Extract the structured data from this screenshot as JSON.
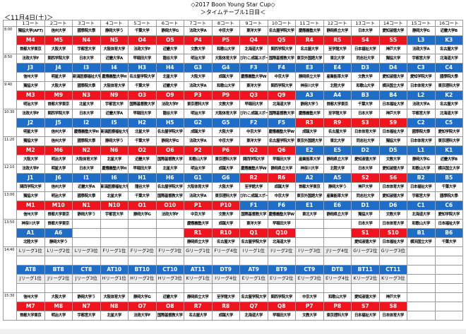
{
  "header": {
    "title": "◇2017 Boon Young Star Cup◇",
    "subtitle": "＞タイムテーブル1日目＜",
    "date": "＜11月4日(土)＞"
  },
  "colors": {
    "r": "#f0141e",
    "b": "#1e6ec8"
  },
  "courts": [
    "1コート",
    "2コート",
    "3コート",
    "4コート",
    "5コート",
    "6コート",
    "7コート",
    "8コート",
    "9コート",
    "10コート",
    "11コート",
    "12コート",
    "13コート",
    "14コート",
    "15コート",
    "16コート"
  ],
  "slots": [
    {
      "time": "8:00",
      "rows": [
        {
          "type": "team",
          "cells": [
            "獨協大学(AFT)",
            "信州大学",
            "國學院大學",
            "静岡大学う",
            "千葉大学",
            "静岡大学G",
            "法政大学A",
            "中京大学",
            "東洋大学",
            "名古屋学院大学",
            "慶應義塾大学",
            "静岡県立大学",
            "日本大学",
            "愛知淑徳大学",
            "静岡大学G",
            "近畿大学B"
          ]
        },
        {
          "type": "code",
          "cells": [
            "M4",
            "M5",
            "N4",
            "N5",
            "O4",
            "O5",
            "P4",
            "P5",
            "Q4",
            "Q5",
            "R4",
            "R5",
            "S4",
            "S5",
            "L3",
            "K3"
          ],
          "colors": [
            "r",
            "r",
            "r",
            "r",
            "r",
            "r",
            "r",
            "r",
            "r",
            "r",
            "r",
            "r",
            "r",
            "r",
            "b",
            "b"
          ]
        },
        {
          "type": "team",
          "cells": [
            "首都大学東京",
            "大阪大学",
            "宇都宮大学",
            "大阪体育大学",
            "法政大学F",
            "近畿大学",
            "文教大学",
            "和歌山大学",
            "北海道大学",
            "関西学院大学",
            "名古屋大学",
            "至学館大学",
            "日本福祉大学",
            "神戸大学",
            "法政大学A",
            "名古屋大学"
          ]
        }
      ]
    },
    {
      "time": "8:50",
      "rows": [
        {
          "type": "team",
          "cells": [
            "法政大学F",
            "関西学院大学",
            "日本大学",
            "近畿大学A",
            "早稲田大学",
            "龍谷大学",
            "明治大学",
            "大阪体育大学",
            "びわこ成蹊スポーツ大学",
            "国際基督教大学",
            "東京外国語大学",
            "東北大学",
            "同志社大学",
            "獨協大学",
            "宇都宮大学",
            "北海道大学"
          ]
        },
        {
          "type": "code",
          "cells": [
            "J3",
            "J4",
            "I3",
            "I4",
            "H3",
            "H4",
            "G3",
            "G4",
            "F3",
            "F4",
            "E3",
            "E4",
            "D3",
            "D4",
            "C3",
            "C4"
          ],
          "colors": [
            "b",
            "b",
            "b",
            "b",
            "b",
            "b",
            "b",
            "b",
            "b",
            "b",
            "b",
            "b",
            "b",
            "b",
            "b",
            "b"
          ]
        },
        {
          "type": "team",
          "cells": [
            "信州大学",
            "明星大学",
            "新潟医療福祉大学",
            "慶應義塾大学H",
            "名古屋学院大学",
            "北星大学",
            "大阪大学",
            "成蹊大学",
            "慶應義塾大学W",
            "中京大学",
            "静岡県立大学",
            "産業能率大学",
            "文教大学",
            "愛知淑徳大学",
            "愛知学院大学",
            "國學院大學"
          ]
        }
      ]
    },
    {
      "time": "9:40",
      "rows": [
        {
          "type": "team",
          "cells": [
            "獨協大学",
            "大阪大学",
            "國學院大學",
            "大阪体育大学",
            "千葉大学",
            "近畿大学",
            "法政大学A",
            "和歌山大学",
            "東洋大学",
            "関西学院大学",
            "神奈川大学",
            "北陸大学",
            "和歌山大学",
            "横浜国立大学",
            "日本体育大学",
            "東京理科大学"
          ]
        },
        {
          "type": "code",
          "cells": [
            "M3",
            "M9",
            "N3",
            "N9",
            "O3",
            "O9",
            "P3",
            "P9",
            "Q3",
            "Q9",
            "A3",
            "A4",
            "B3",
            "B4",
            "L2",
            "K2"
          ],
          "colors": [
            "r",
            "r",
            "r",
            "r",
            "r",
            "r",
            "r",
            "r",
            "r",
            "r",
            "b",
            "b",
            "b",
            "b",
            "b",
            "b"
          ]
        },
        {
          "type": "team",
          "cells": [
            "明治大学",
            "首都大学東京",
            "北星大学",
            "宇都宮大学",
            "国際基督教大学",
            "法政大学F",
            "東京理科大学",
            "文教大学",
            "早稲田大学",
            "北海道大学",
            "静岡大学う",
            "首都大学東京",
            "千葉大学",
            "日本福祉大学",
            "法政大学A",
            "名古屋大学"
          ]
        }
      ]
    },
    {
      "time": "10:30",
      "rows": [
        {
          "type": "team",
          "cells": [
            "法政大学F",
            "関西学院大学",
            "日本大学",
            "近畿大学A",
            "早稲田大学",
            "龍谷大学",
            "明治大学",
            "大阪体育大学",
            "びわこ成蹊スポーツ大学",
            "国際基督教大学",
            "慶應義塾大学",
            "至学館大学",
            "日本大学",
            "神戸大学",
            "宇都宮大学",
            "北海道大学"
          ]
        },
        {
          "type": "code",
          "cells": [
            "J2",
            "J5",
            "I2",
            "I5",
            "H2",
            "H5",
            "G2",
            "G5",
            "F2",
            "F5",
            "R3",
            "R9",
            "S3",
            "S9",
            "C2",
            "C5"
          ],
          "colors": [
            "b",
            "b",
            "b",
            "b",
            "b",
            "b",
            "b",
            "b",
            "b",
            "b",
            "r",
            "r",
            "r",
            "r",
            "b",
            "b"
          ]
        },
        {
          "type": "team",
          "cells": [
            "明星大学",
            "信州大学",
            "慶應義塾大学H",
            "新潟医療福祉大学",
            "北星大学",
            "名古屋学院大学",
            "成蹊大学",
            "大阪大学",
            "中京大学",
            "慶應義塾大学W",
            "成蹊大学",
            "名古屋大学",
            "日本体育大学",
            "日本福祉大学",
            "國學院大學",
            "愛知学院大学"
          ]
        }
      ]
    },
    {
      "time": "11:20",
      "rows": [
        {
          "type": "team",
          "cells": [
            "獨協大学",
            "信州大学",
            "國學院大學",
            "静岡大学う",
            "千葉大学",
            "静岡大学G",
            "法政大学A",
            "中京大学",
            "東洋大学",
            "名古屋学院大学",
            "東京外国語大学",
            "東北大学",
            "同志社大学",
            "獨協大学",
            "日本体育大学",
            "東京理科大学"
          ]
        },
        {
          "type": "code",
          "cells": [
            "M2",
            "M6",
            "N2",
            "N6",
            "O2",
            "O6",
            "P2",
            "P6",
            "Q2",
            "Q6",
            "E2",
            "E5",
            "D2",
            "D5",
            "L1",
            "K1"
          ],
          "colors": [
            "r",
            "r",
            "r",
            "r",
            "r",
            "r",
            "r",
            "r",
            "r",
            "r",
            "b",
            "b",
            "b",
            "b",
            "b",
            "b"
          ]
        },
        {
          "type": "team",
          "cells": [
            "大阪大学",
            "明治大学",
            "大阪体育大学",
            "北星大学",
            "近畿大学",
            "国際基督教大学",
            "和歌山大学",
            "東京理科大学",
            "関西学院大学",
            "早稲田大学",
            "産業能率大学",
            "静岡県立大学",
            "愛知淑徳大学",
            "文教大学",
            "静岡大学G",
            "近畿大学B"
          ]
        }
      ]
    },
    {
      "time": "12:10",
      "rows": [
        {
          "type": "team",
          "cells": [
            "法政大学F",
            "明星大学",
            "日本大学",
            "慶應義塾大学H",
            "早稲田大学",
            "北星大学",
            "明治大学",
            "成蹊大学",
            "慶應義塾大学W",
            "静岡県立大学",
            "神奈川大学",
            "北陸大学",
            "日本大学",
            "愛知淑徳大学",
            "和歌山大学",
            "横浜国立大学"
          ]
        },
        {
          "type": "code",
          "cells": [
            "J1",
            "J6",
            "I1",
            "I6",
            "H1",
            "H6",
            "G1",
            "G6",
            "R2",
            "R6",
            "A2",
            "A5",
            "S2",
            "S6",
            "B2",
            "B5"
          ],
          "colors": [
            "b",
            "b",
            "b",
            "b",
            "b",
            "b",
            "b",
            "b",
            "r",
            "r",
            "b",
            "b",
            "r",
            "r",
            "b",
            "b"
          ]
        },
        {
          "type": "team",
          "cells": [
            "関西学院大学",
            "信州大学",
            "近畿大学A",
            "新潟医療福祉大学",
            "龍谷大学",
            "名古屋学院大学",
            "大阪体育大学",
            "大阪大学",
            "至学館大学",
            "成蹊大学",
            "首都大学東京",
            "静岡大学う",
            "神戸大学",
            "日本体育大学",
            "日本福祉大学",
            "千葉大学"
          ]
        }
      ]
    },
    {
      "time": "13:00",
      "rows": [
        {
          "type": "team",
          "cells": [
            "獨協大学",
            "明治大学",
            "國學院大學",
            "北星大学",
            "千葉大学",
            "国際基督教大学",
            "法政大学A",
            "東京理科大学",
            "びわこ成蹊スポーツ大学",
            "中京大学",
            "東京外国語大学",
            "産業能率大学",
            "同志社大学",
            "愛知淑徳大学",
            "宇都宮大学",
            "國學院大學"
          ]
        },
        {
          "type": "code",
          "cells": [
            "M1",
            "M10",
            "N1",
            "N10",
            "O1",
            "O10",
            "P1",
            "P10",
            "F1",
            "F6",
            "E1",
            "E6",
            "D1",
            "D6",
            "C1",
            "C6"
          ],
          "colors": [
            "r",
            "r",
            "r",
            "r",
            "r",
            "r",
            "r",
            "r",
            "b",
            "b",
            "b",
            "b",
            "b",
            "b",
            "b",
            "b"
          ]
        },
        {
          "type": "team",
          "cells": [
            "信州大学",
            "首都大学東京",
            "静岡大学う",
            "宇都宮大学",
            "静岡大学G",
            "法政大学F",
            "中京大学",
            "文教大学",
            "国際基督教大学",
            "慶應義塾大学W",
            "東北大学",
            "静岡県立大学",
            "獨協大学",
            "文教大学",
            "北海道大学",
            "愛知学院大学"
          ]
        }
      ]
    },
    {
      "time": "13:50",
      "rows": [
        {
          "type": "team",
          "cells": [
            "神奈川大学",
            "首都大学東京",
            "",
            "",
            "",
            "",
            "慶應義塾大学",
            "成蹊大学",
            "東洋大学",
            "早稲田大学",
            "",
            "",
            "日本大学",
            "日本体育大学",
            "和歌山大学",
            "日本福祉大学"
          ]
        },
        {
          "type": "code",
          "cells": [
            "A1",
            "A6",
            "",
            "",
            "",
            "",
            "R1",
            "R10",
            "Q1",
            "Q10",
            "",
            "",
            "S1",
            "S10",
            "B1",
            "B6"
          ],
          "colors": [
            "b",
            "b",
            "",
            "",
            "",
            "",
            "r",
            "r",
            "r",
            "r",
            "",
            "",
            "r",
            "r",
            "b",
            "b"
          ]
        },
        {
          "type": "team",
          "cells": [
            "北陸大学",
            "静岡大学う",
            "",
            "",
            "",
            "",
            "静岡県立大学",
            "名古屋大学",
            "名古屋学院大学",
            "北海道大学",
            "",
            "",
            "愛知淑徳大学",
            "日本福祉大学",
            "横浜国立大学",
            "千葉大学"
          ]
        }
      ]
    },
    {
      "time": "14:40",
      "rows": [
        {
          "type": "league",
          "cells": [
            "Lリーグ1位",
            "Lリーグ2位",
            "Lリーグ3位",
            "Fリーグ1位",
            "Fリーグ2位",
            "Fリーグ3位",
            "Gリーグ1位",
            "Fリーグ4位",
            "Iリーグ1位",
            "Iリーグ2位",
            "Iリーグ3位",
            "Jリーグ4位",
            "Gリーグ2位",
            "Gリーグ3位",
            "",
            ""
          ]
        },
        {
          "type": "blank",
          "cells": [
            "",
            "",
            "",
            "",
            "",
            "",
            "",
            "",
            "",
            "",
            "",
            "",
            "",
            "",
            "",
            ""
          ]
        },
        {
          "type": "code",
          "cells": [
            "AT8",
            "BT8",
            "CT8",
            "AT10",
            "BT10",
            "CT10",
            "AT11",
            "DT9",
            "AT9",
            "BT9",
            "CT9",
            "DT8",
            "BT11",
            "CT11",
            "",
            ""
          ],
          "colors": [
            "b",
            "b",
            "b",
            "b",
            "b",
            "b",
            "b",
            "b",
            "b",
            "b",
            "b",
            "b",
            "b",
            "b",
            "",
            ""
          ]
        },
        {
          "type": "league",
          "cells": [
            "Jリーグ1位",
            "Jリーグ2位",
            "Jリーグ3位",
            "Hリーグ1位",
            "Hリーグ2位",
            "Hリーグ3位",
            "Kリーグ1位",
            "Iリーグ4位",
            "Eリーグ1位",
            "Eリーグ2位",
            "Eリーグ3位",
            "Eリーグ4位",
            "Kリーグ2位",
            "Kリーグ3位",
            "",
            ""
          ]
        },
        {
          "type": "blank",
          "cells": [
            "",
            "",
            "",
            "",
            "",
            "",
            "",
            "",
            "",
            "",
            "",
            "",
            "",
            "",
            "",
            ""
          ]
        }
      ]
    },
    {
      "time": "15:30",
      "rows": [
        {
          "type": "team",
          "cells": [
            "信州大学",
            "大阪大学",
            "静岡大学う",
            "大阪体育大学",
            "静岡大学G",
            "近畿大学",
            "静岡県立大学",
            "至学館大学",
            "名古屋学院大学",
            "関西学院大学",
            "中京大学",
            "和歌山大学",
            "愛知淑徳大学",
            "神戸大学",
            "",
            ""
          ]
        },
        {
          "type": "code",
          "cells": [
            "M7",
            "M8",
            "N7",
            "N8",
            "O7",
            "O8",
            "R7",
            "R8",
            "Q7",
            "Q8",
            "P7",
            "P8",
            "S7",
            "S8",
            "",
            ""
          ],
          "colors": [
            "r",
            "r",
            "r",
            "r",
            "r",
            "r",
            "r",
            "r",
            "r",
            "r",
            "r",
            "r",
            "r",
            "r",
            "",
            ""
          ]
        },
        {
          "type": "team",
          "cells": [
            "首都大学東京",
            "明治大学",
            "宇都宮大学",
            "北星大学",
            "法政大学F",
            "国際基督教大学",
            "名古屋大学",
            "成蹊大学",
            "北海道大学",
            "早稲田大学",
            "文教大学",
            "東京理科大学",
            "日本福祉大学",
            "日本体育大学",
            "",
            ""
          ]
        }
      ]
    }
  ]
}
